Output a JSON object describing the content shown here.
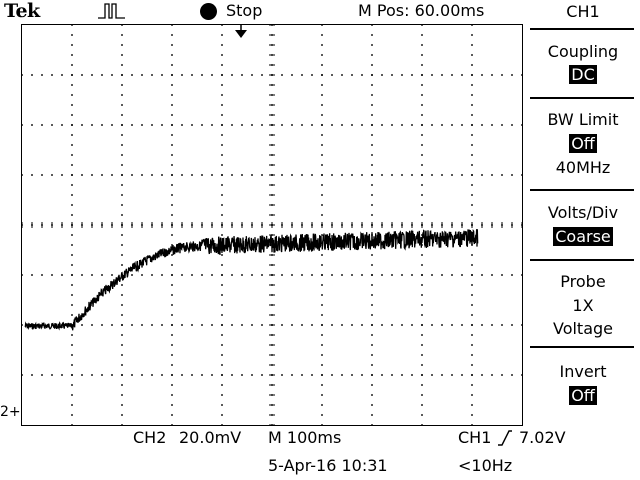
{
  "header": {
    "brand": "Tek",
    "run_state": "Stop",
    "m_pos": "M Pos: 60.00ms",
    "trigger_icon": "pulse-icon",
    "trigger_marker_icon": "trigger-position-arrow-icon"
  },
  "screen": {
    "ground_marker": "2+",
    "grid_divisions": {
      "horizontal": 10,
      "vertical": 8
    },
    "grid_on": true,
    "trace_color": "#000000"
  },
  "footer": {
    "ch2_label": "CH2",
    "ch2_scale": "20.0mV",
    "timebase": "M 100ms",
    "date": "5-Apr-16 10:31",
    "trigger_source": "CH1",
    "trigger_slope_icon": "rising-edge-icon",
    "trigger_level": "7.02V",
    "frequency": "<10Hz"
  },
  "side_menu": {
    "title": "CH1",
    "items": [
      {
        "title": "Coupling",
        "value": "DC"
      },
      {
        "title": "BW Limit",
        "value": "Off",
        "extra": "40MHz"
      },
      {
        "title": "Volts/Div",
        "value": "Coarse"
      },
      {
        "title": "Probe",
        "value_lines": [
          "1X",
          "Voltage"
        ]
      },
      {
        "title": "Invert",
        "value": "Off"
      }
    ]
  }
}
